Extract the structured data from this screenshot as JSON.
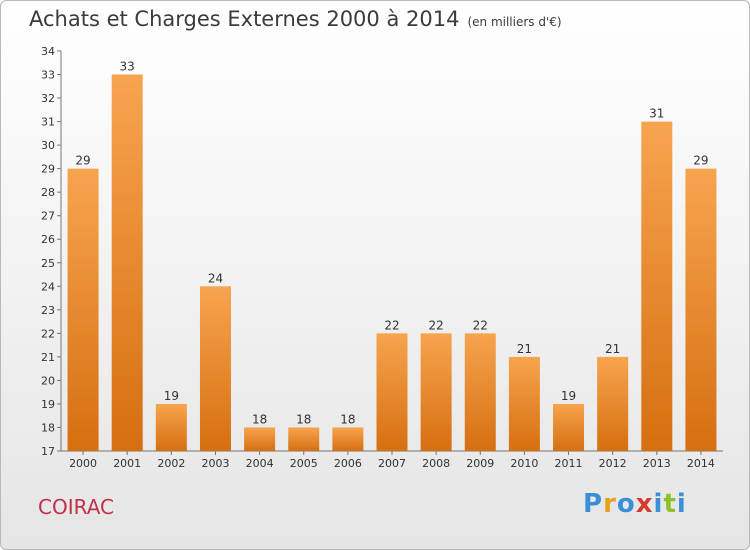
{
  "page": {
    "title": "Achats et Charges Externes 2000 à 2014",
    "unit": "(en milliers d'€)",
    "commune": "COIRAC",
    "logo": {
      "letters": [
        "P",
        "r",
        "o",
        "x",
        "i",
        "t",
        "i"
      ],
      "colors": [
        "#3a8fd8",
        "#e8a020",
        "#3a8fd8",
        "#d23a2e",
        "#3a8fd8",
        "#8fbf2a",
        "#3a8fd8"
      ]
    }
  },
  "chart_data": {
    "type": "bar",
    "title": "Achats et Charges Externes 2000 à 2014",
    "subtitle": "(en milliers d'€)",
    "categories": [
      "2000",
      "2001",
      "2002",
      "2003",
      "2004",
      "2005",
      "2006",
      "2007",
      "2008",
      "2009",
      "2010",
      "2011",
      "2012",
      "2013",
      "2014"
    ],
    "values": [
      29,
      33,
      19,
      24,
      18,
      18,
      18,
      22,
      22,
      22,
      21,
      19,
      21,
      31,
      29
    ],
    "ylim": [
      17,
      34
    ],
    "yticks": [
      17,
      18,
      19,
      20,
      21,
      22,
      23,
      24,
      25,
      26,
      27,
      28,
      29,
      30,
      31,
      32,
      33,
      34
    ],
    "grid": false,
    "bar_color": "#f0902f"
  }
}
